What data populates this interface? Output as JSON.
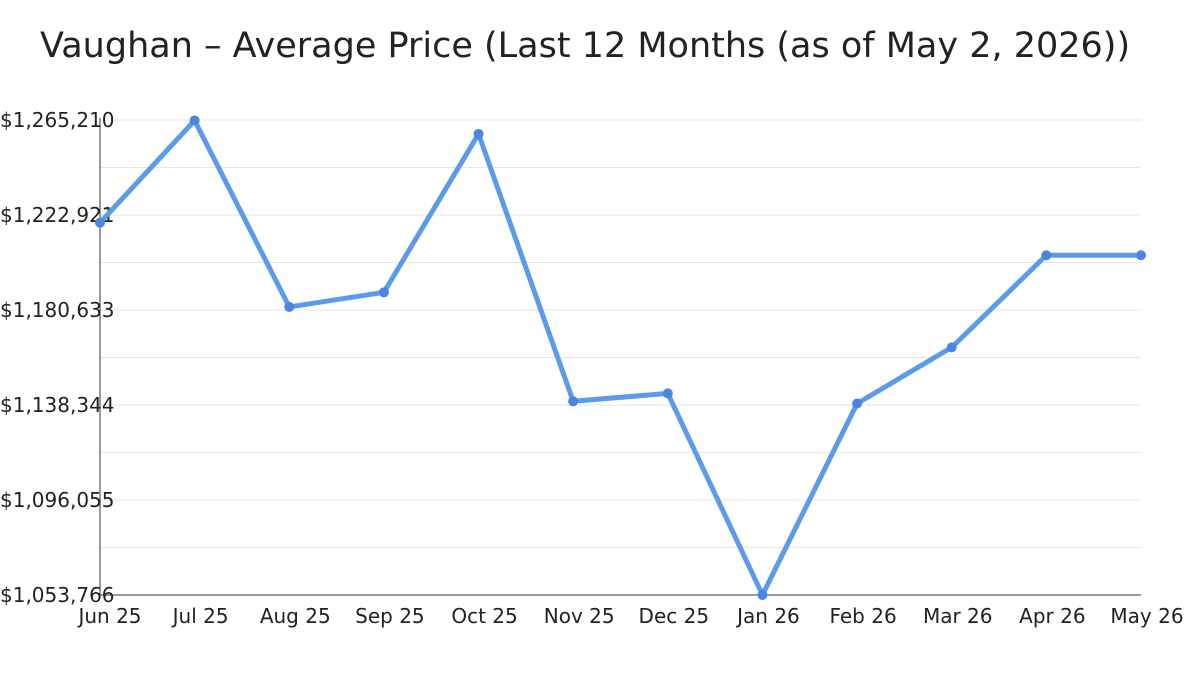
{
  "chart_data": {
    "type": "line",
    "title": "Vaughan – Average Price (Last 12 Months (as of May 2, 2026))",
    "xlabel": "",
    "ylabel": "",
    "categories": [
      "Jun 25",
      "Jul 25",
      "Aug 25",
      "Sep 25",
      "Oct 25",
      "Nov 25",
      "Dec 25",
      "Jan 26",
      "Feb 26",
      "Mar 26",
      "Apr 26",
      "May 26"
    ],
    "values": [
      1219500,
      1265000,
      1182000,
      1188500,
      1259000,
      1140000,
      1143500,
      1053766,
      1139000,
      1164000,
      1205000,
      1205000
    ],
    "y_ticks": [
      "$1,053,766",
      "$1,096,055",
      "$1,138,344",
      "$1,180,633",
      "$1,222,921",
      "$1,265,210"
    ],
    "ylim": [
      1053766,
      1265210
    ],
    "grid": true,
    "legend": "none",
    "colors": {
      "line": "#5b9bea",
      "marker": "#4a86e0",
      "grid": "#e6e6e6",
      "axis": "#333333"
    }
  }
}
